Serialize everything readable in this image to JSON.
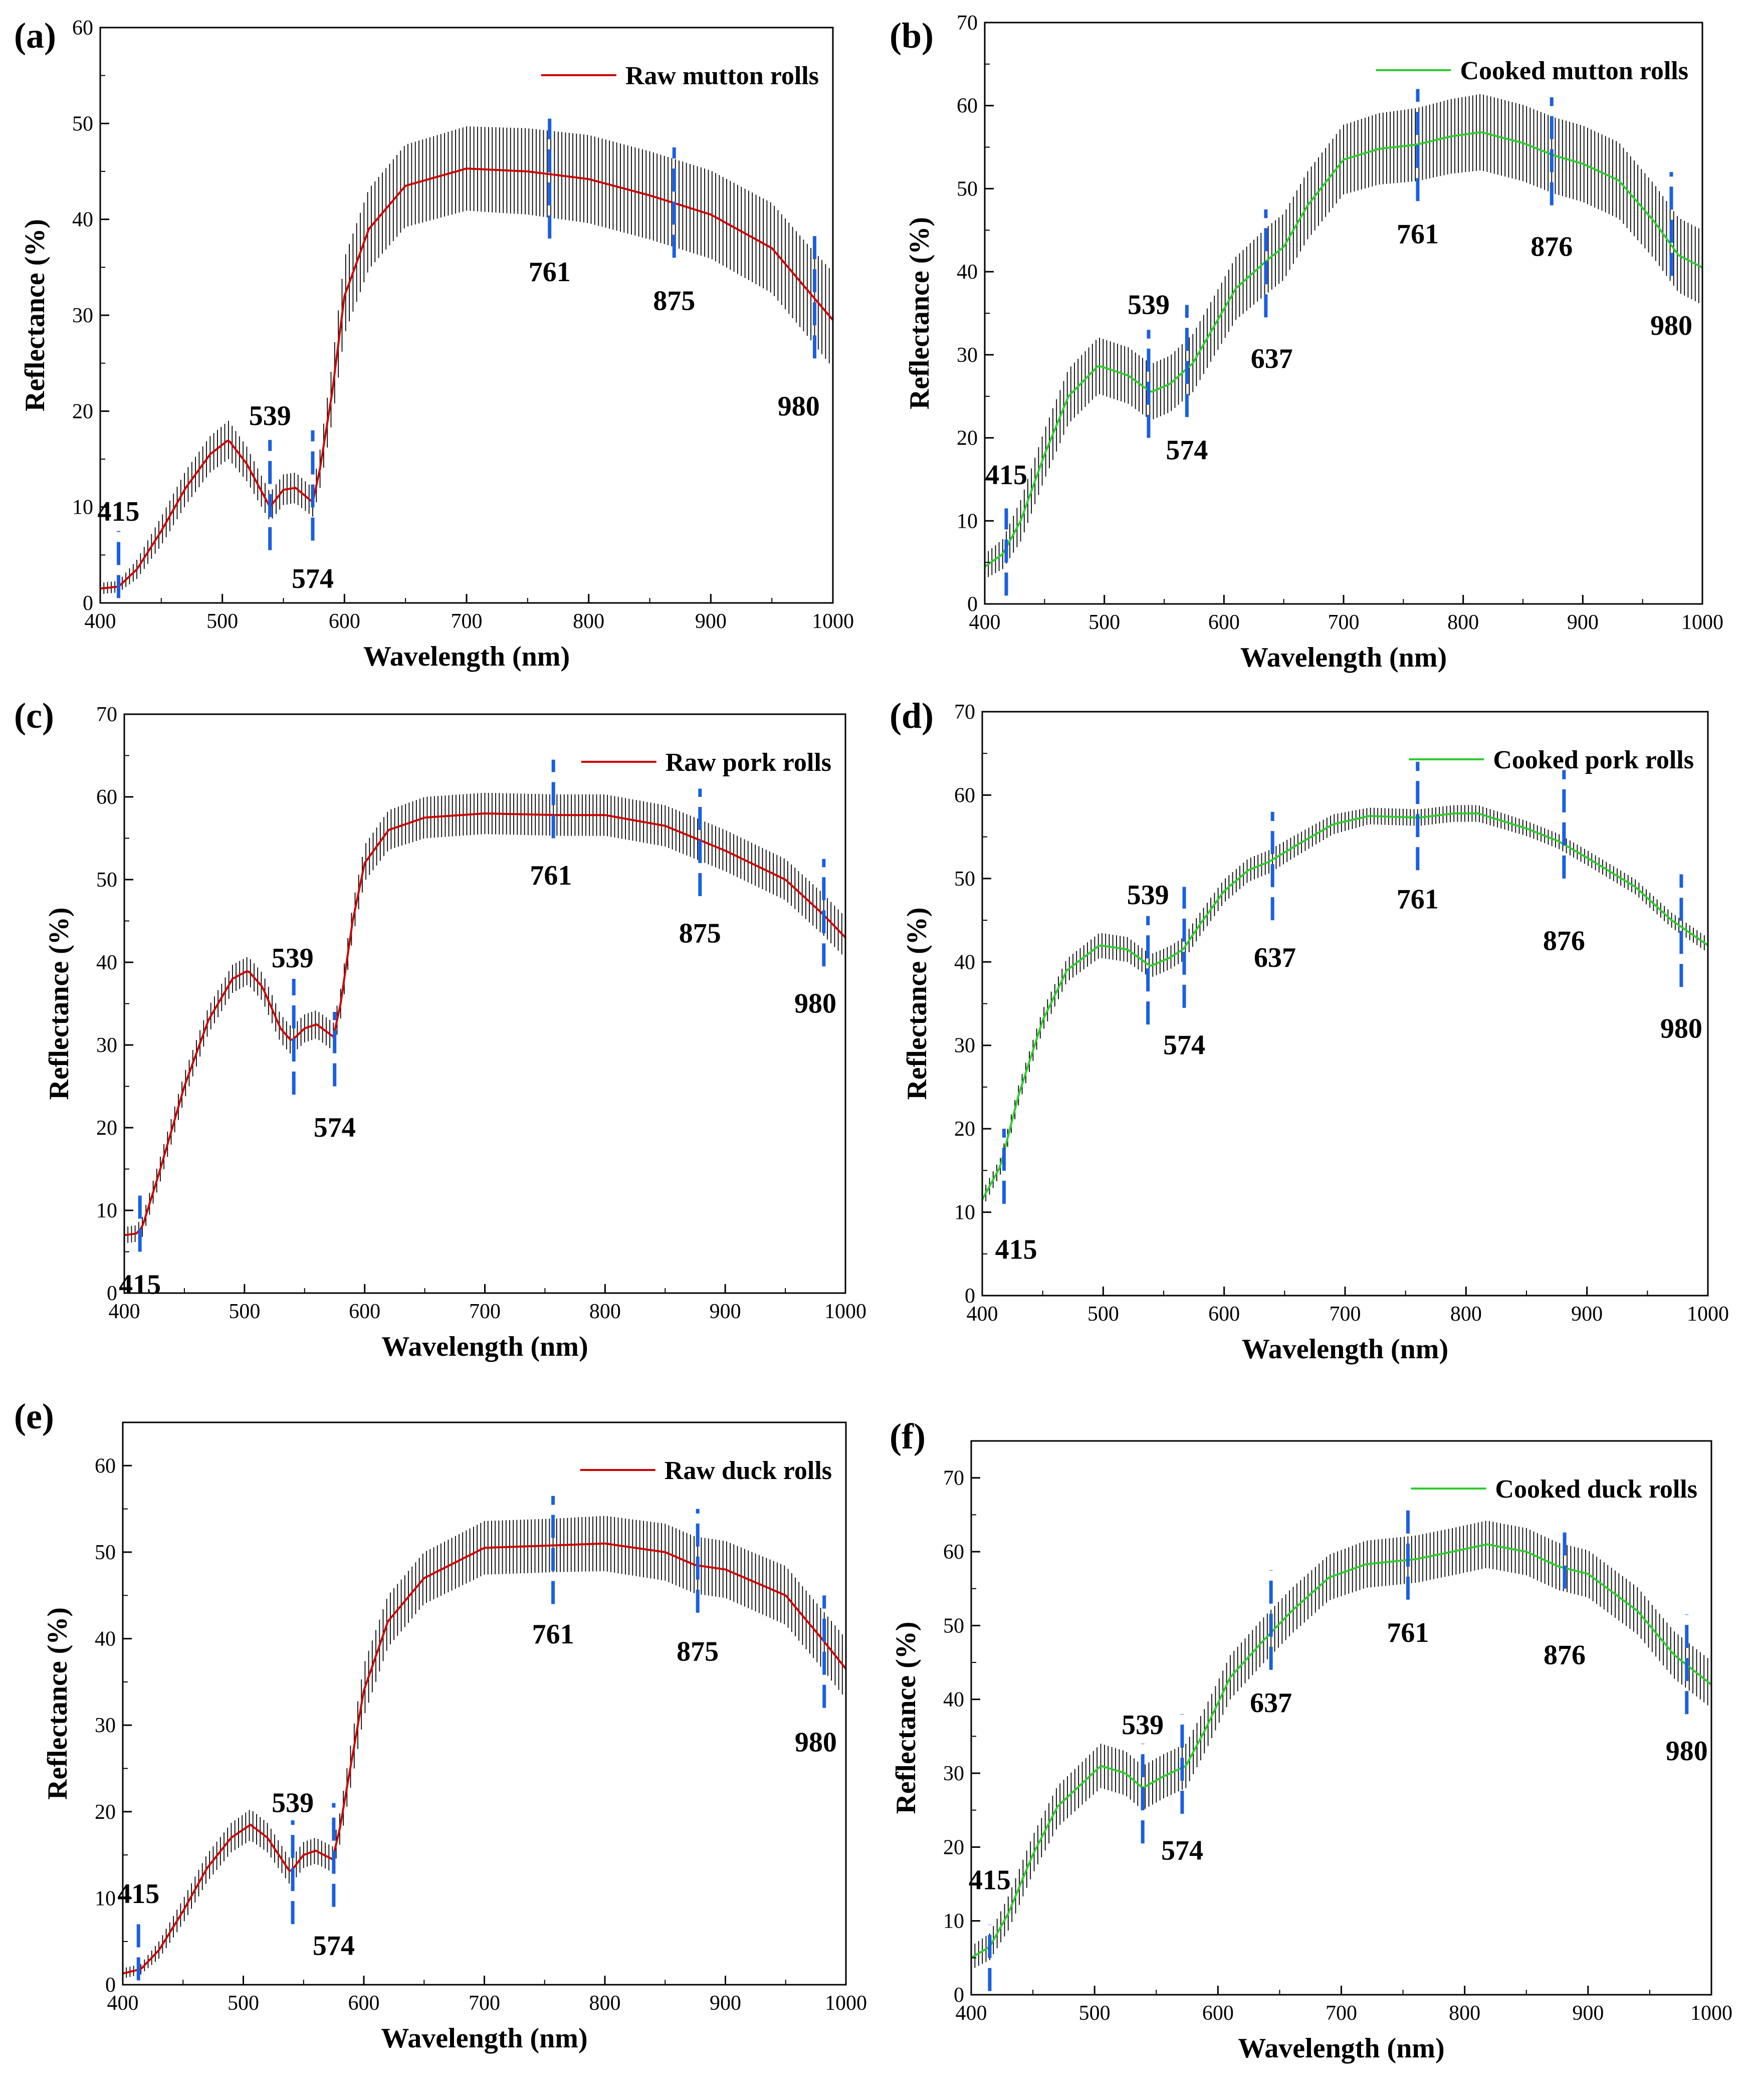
{
  "figure": {
    "background": "#ffffff"
  },
  "chart_data": [
    {
      "panel": "(a)",
      "type": "line",
      "title": "",
      "legend": "Raw mutton rolls",
      "legend_position": "top-right",
      "xlabel": "Wavelength (nm)",
      "ylabel": "Reflectance (%)",
      "xlim": [
        400,
        1000
      ],
      "ylim": [
        0,
        60
      ],
      "xticks": [
        400,
        500,
        600,
        700,
        800,
        900,
        1000
      ],
      "yticks": [
        0,
        10,
        20,
        30,
        40,
        50,
        60
      ],
      "line_color": "#cc0000",
      "error_color": "#000000",
      "marker_color": "#1a5fe0",
      "series": [
        {
          "name": "Raw mutton rolls",
          "x": [
            400,
            415,
            430,
            450,
            470,
            490,
            505,
            520,
            539,
            550,
            560,
            574,
            580,
            590,
            600,
            620,
            650,
            700,
            750,
            800,
            850,
            900,
            950,
            980,
            1000
          ],
          "values": [
            1.5,
            1.7,
            3.5,
            7.5,
            12,
            15.5,
            17,
            14.5,
            10,
            11.8,
            12,
            10.5,
            14,
            22,
            32,
            39,
            43.5,
            45.3,
            45,
            44.2,
            42.5,
            40.5,
            37,
            32.5,
            29.5
          ],
          "error": [
            0.6,
            0.6,
            1,
            1.5,
            1.8,
            1.9,
            2,
            1.8,
            1.5,
            1.6,
            1.6,
            1.5,
            2,
            3,
            4,
            4.2,
            4.3,
            4.4,
            4.5,
            4.6,
            4.6,
            4.6,
            4.7,
            4.8,
            5
          ]
        }
      ],
      "peaks": [
        {
          "label": "415",
          "x": 415,
          "y1": 0.5,
          "y2": 7.5,
          "lx": 415,
          "ly": 9.5
        },
        {
          "label": "539",
          "x": 539,
          "y1": 5.5,
          "y2": 17,
          "lx": 539,
          "ly": 19.5
        },
        {
          "label": "574",
          "x": 574,
          "y1": 6.5,
          "y2": 18,
          "lx": 574,
          "ly": 2.5
        },
        {
          "label": "761",
          "x": 768,
          "y1": 38,
          "y2": 50.5,
          "lx": 768,
          "ly": 34.5
        },
        {
          "label": "875",
          "x": 870,
          "y1": 36,
          "y2": 47.5,
          "lx": 870,
          "ly": 31.5
        },
        {
          "label": "980",
          "x": 985,
          "y1": 25.5,
          "y2": 39,
          "lx": 972,
          "ly": 20.5
        }
      ]
    },
    {
      "panel": "(b)",
      "type": "line",
      "title": "",
      "legend": "Cooked mutton rolls",
      "legend_position": "top-right",
      "xlabel": "Wavelength (nm)",
      "ylabel": "Reflectance (%)",
      "xlim": [
        400,
        1000
      ],
      "ylim": [
        0,
        70
      ],
      "xticks": [
        400,
        500,
        600,
        700,
        800,
        900,
        1000
      ],
      "yticks": [
        0,
        10,
        20,
        30,
        40,
        50,
        60,
        70
      ],
      "line_color": "#2ecc2e",
      "error_color": "#000000",
      "marker_color": "#1a5fe0",
      "series": [
        {
          "name": "Cooked mutton rolls",
          "x": [
            400,
            415,
            430,
            450,
            470,
            495,
            520,
            539,
            555,
            574,
            590,
            610,
            637,
            650,
            670,
            700,
            730,
            761,
            790,
            815,
            850,
            876,
            900,
            930,
            960,
            980,
            1000
          ],
          "values": [
            4.5,
            6,
            10,
            18,
            25,
            28.7,
            27.5,
            25.5,
            26.5,
            29,
            33,
            38,
            41.5,
            43,
            48,
            53.5,
            54.8,
            55.3,
            56.3,
            56.8,
            55.5,
            54,
            53,
            51,
            46,
            42,
            40.5
          ],
          "error": [
            1.5,
            1.8,
            2.5,
            3,
            3.3,
            3.4,
            3.4,
            3.4,
            3.4,
            3.5,
            3.6,
            3.8,
            4,
            4,
            4.1,
            4.2,
            4.3,
            4.4,
            4.5,
            4.6,
            4.6,
            4.6,
            4.6,
            4.6,
            4.5,
            4.5,
            4.5
          ]
        }
      ],
      "peaks": [
        {
          "label": "415",
          "x": 418,
          "y1": 1,
          "y2": 11.5,
          "lx": 418,
          "ly": 15.5
        },
        {
          "label": "539",
          "x": 537,
          "y1": 20,
          "y2": 33,
          "lx": 537,
          "ly": 36
        },
        {
          "label": "574",
          "x": 569,
          "y1": 22.5,
          "y2": 36,
          "lx": 569,
          "ly": 18.5
        },
        {
          "label": "637",
          "x": 635,
          "y1": 34.5,
          "y2": 47.5,
          "lx": 640,
          "ly": 29.5
        },
        {
          "label": "761",
          "x": 762,
          "y1": 48.5,
          "y2": 62,
          "lx": 762,
          "ly": 44.5
        },
        {
          "label": "876",
          "x": 874,
          "y1": 48,
          "y2": 61,
          "lx": 874,
          "ly": 43
        },
        {
          "label": "980",
          "x": 974,
          "y1": 39.5,
          "y2": 52,
          "lx": 974,
          "ly": 33.5
        }
      ]
    },
    {
      "panel": "(c)",
      "type": "line",
      "title": "",
      "legend": "Raw pork rolls",
      "legend_position": "top-right",
      "xlabel": "Wavelength (nm)",
      "ylabel": "Reflectance (%)",
      "xlim": [
        400,
        1000
      ],
      "ylim": [
        0,
        70
      ],
      "xticks": [
        400,
        500,
        600,
        700,
        800,
        900,
        1000
      ],
      "yticks": [
        0,
        10,
        20,
        30,
        40,
        50,
        60,
        70
      ],
      "line_color": "#cc0000",
      "error_color": "#000000",
      "marker_color": "#1a5fe0",
      "series": [
        {
          "name": "Raw pork rolls",
          "x": [
            400,
            410,
            415,
            430,
            450,
            470,
            490,
            503,
            515,
            530,
            539,
            550,
            560,
            574,
            580,
            590,
            600,
            620,
            650,
            700,
            761,
            800,
            850,
            875,
            900,
            950,
            980,
            1000
          ],
          "values": [
            7,
            7.2,
            8,
            15,
            25,
            33,
            38,
            39,
            37,
            32,
            30.5,
            32,
            32.5,
            31,
            35,
            45,
            52,
            56,
            57.5,
            58,
            57.8,
            57.8,
            56.5,
            55,
            53.5,
            50,
            46,
            43
          ],
          "error": [
            1,
            1,
            1.2,
            1.5,
            1.6,
            1.6,
            1.7,
            1.7,
            1.7,
            1.7,
            1.7,
            1.7,
            1.7,
            1.7,
            1.8,
            2,
            2.2,
            2.4,
            2.5,
            2.5,
            2.5,
            2.5,
            2.5,
            2.5,
            2.5,
            2.5,
            2.5,
            2.5
          ]
        }
      ],
      "peaks": [
        {
          "label": "415",
          "x": 413,
          "y1": 5,
          "y2": 13,
          "lx": 413,
          "ly": 1
        },
        {
          "label": "539",
          "x": 541,
          "y1": 24,
          "y2": 38,
          "lx": 540,
          "ly": 40.5
        },
        {
          "label": "574",
          "x": 575,
          "y1": 25,
          "y2": 34,
          "lx": 575,
          "ly": 20
        },
        {
          "label": "761",
          "x": 757,
          "y1": 55,
          "y2": 64.5,
          "lx": 755,
          "ly": 50.5
        },
        {
          "label": "875",
          "x": 879,
          "y1": 48,
          "y2": 61,
          "lx": 879,
          "ly": 43.5
        },
        {
          "label": "980",
          "x": 982,
          "y1": 39.5,
          "y2": 52.5,
          "lx": 975,
          "ly": 35
        }
      ]
    },
    {
      "panel": "(d)",
      "type": "line",
      "title": "",
      "legend": "Cooked pork rolls",
      "legend_position": "top-right",
      "xlabel": "Wavelength (nm)",
      "ylabel": "Reflectance (%)",
      "xlim": [
        400,
        1000
      ],
      "ylim": [
        0,
        70
      ],
      "xticks": [
        400,
        500,
        600,
        700,
        800,
        900,
        1000
      ],
      "yticks": [
        0,
        10,
        20,
        30,
        40,
        50,
        60,
        70
      ],
      "line_color": "#2ecc2e",
      "error_color": "#000000",
      "marker_color": "#1a5fe0",
      "series": [
        {
          "name": "Cooked pork rolls",
          "x": [
            400,
            415,
            430,
            450,
            470,
            497,
            520,
            539,
            555,
            566,
            580,
            600,
            620,
            637,
            660,
            690,
            720,
            761,
            790,
            810,
            850,
            876,
            900,
            940,
            970,
            1000
          ],
          "values": [
            11.5,
            15.5,
            24,
            33,
            39,
            42,
            41.5,
            39.5,
            40.5,
            41.5,
            44.5,
            48.5,
            51,
            52,
            54,
            56.5,
            57.5,
            57.3,
            57.8,
            57.8,
            56,
            54.5,
            52.5,
            49,
            45,
            42
          ],
          "error": [
            1,
            1,
            1.2,
            1.3,
            1.4,
            1.5,
            1.5,
            1.4,
            1.4,
            1.4,
            1.4,
            1.4,
            1.4,
            1.4,
            1.3,
            1.2,
            1,
            1,
            1,
            1,
            0.9,
            0.9,
            0.9,
            0.9,
            0.9,
            0.9
          ]
        }
      ],
      "peaks": [
        {
          "label": "415",
          "x": 418,
          "y1": 11,
          "y2": 20,
          "lx": 428,
          "ly": 5.5
        },
        {
          "label": "539",
          "x": 537,
          "y1": 32.5,
          "y2": 45.5,
          "lx": 537,
          "ly": 48
        },
        {
          "label": "574",
          "x": 567,
          "y1": 34.5,
          "y2": 49,
          "lx": 567,
          "ly": 30
        },
        {
          "label": "637",
          "x": 640,
          "y1": 45,
          "y2": 58,
          "lx": 642,
          "ly": 40.5
        },
        {
          "label": "761",
          "x": 760,
          "y1": 51,
          "y2": 64,
          "lx": 760,
          "ly": 47.5
        },
        {
          "label": "876",
          "x": 881,
          "y1": 50,
          "y2": 63,
          "lx": 881,
          "ly": 42.5
        },
        {
          "label": "980",
          "x": 978,
          "y1": 37,
          "y2": 50.5,
          "lx": 978,
          "ly": 32
        }
      ]
    },
    {
      "panel": "(e)",
      "type": "line",
      "title": "",
      "legend": "Raw duck rolls",
      "legend_position": "top-right",
      "xlabel": "Wavelength (nm)",
      "ylabel": "Reflectance (%)",
      "xlim": [
        400,
        1000
      ],
      "ylim": [
        0,
        65
      ],
      "xticks": [
        400,
        500,
        600,
        700,
        800,
        900,
        1000
      ],
      "yticks": [
        0,
        10,
        20,
        30,
        40,
        50,
        60
      ],
      "line_color": "#cc0000",
      "error_color": "#000000",
      "marker_color": "#1a5fe0",
      "series": [
        {
          "name": "Raw duck rolls",
          "x": [
            400,
            415,
            430,
            450,
            470,
            490,
            506,
            520,
            539,
            550,
            560,
            574,
            580,
            590,
            600,
            620,
            650,
            700,
            761,
            800,
            850,
            875,
            900,
            950,
            980,
            1000
          ],
          "values": [
            1.3,
            1.8,
            4,
            8.5,
            13.5,
            17,
            18.5,
            17,
            13,
            15,
            15.5,
            14.5,
            18,
            26,
            34,
            42,
            47,
            50.5,
            50.8,
            51,
            50,
            48.5,
            48,
            45,
            40,
            36.5
          ],
          "error": [
            0.6,
            0.6,
            1,
            1.4,
            1.6,
            1.7,
            1.8,
            1.7,
            1.5,
            1.5,
            1.5,
            1.5,
            1.8,
            2.5,
            3,
            3,
            3,
            3.1,
            3.1,
            3.2,
            3.3,
            3.3,
            3.3,
            3.4,
            3.4,
            3.5
          ]
        }
      ],
      "peaks": [
        {
          "label": "415",
          "x": 413,
          "y1": 0.5,
          "y2": 8,
          "lx": 413,
          "ly": 10.5
        },
        {
          "label": "539",
          "x": 541,
          "y1": 7,
          "y2": 19,
          "lx": 541,
          "ly": 21
        },
        {
          "label": "574",
          "x": 575,
          "y1": 9,
          "y2": 21,
          "lx": 575,
          "ly": 4.5
        },
        {
          "label": "761",
          "x": 757,
          "y1": 44,
          "y2": 56.5,
          "lx": 757,
          "ly": 40.5
        },
        {
          "label": "875",
          "x": 877,
          "y1": 43,
          "y2": 55,
          "lx": 877,
          "ly": 38.5
        },
        {
          "label": "980",
          "x": 982,
          "y1": 32,
          "y2": 45,
          "lx": 975,
          "ly": 28
        }
      ]
    },
    {
      "panel": "(f)",
      "type": "line",
      "title": "",
      "legend": "Cooked duck rolls",
      "legend_position": "top-right",
      "xlabel": "Wavelength (nm)",
      "ylabel": "Reflectance (%)",
      "xlim": [
        400,
        1000
      ],
      "ylim": [
        0,
        75
      ],
      "xticks": [
        400,
        500,
        600,
        700,
        800,
        900,
        1000
      ],
      "yticks": [
        0,
        10,
        20,
        30,
        40,
        50,
        60,
        70
      ],
      "line_color": "#2ecc2e",
      "error_color": "#000000",
      "marker_color": "#1a5fe0",
      "series": [
        {
          "name": "Cooked duck rolls",
          "x": [
            400,
            415,
            430,
            450,
            470,
            505,
            525,
            539,
            555,
            574,
            590,
            610,
            637,
            660,
            690,
            720,
            761,
            790,
            818,
            850,
            876,
            900,
            940,
            970,
            1000
          ],
          "values": [
            5,
            6.5,
            11,
            19,
            25.5,
            31,
            30,
            28,
            29.5,
            31,
            36,
            43,
            48,
            52,
            56.5,
            58.3,
            59,
            60,
            61,
            60,
            58,
            57,
            52,
            46,
            42
          ],
          "error": [
            1.6,
            1.8,
            2.3,
            2.6,
            2.8,
            3,
            3,
            3,
            3,
            3,
            3,
            3,
            3.1,
            3.1,
            3.1,
            3.2,
            3.2,
            3.2,
            3.2,
            3.2,
            3.2,
            3.2,
            3.2,
            3.2,
            3.2
          ]
        }
      ],
      "peaks": [
        {
          "label": "415",
          "x": 415,
          "y1": 0.5,
          "y2": 9.5,
          "lx": 415,
          "ly": 15.5
        },
        {
          "label": "539",
          "x": 539,
          "y1": 20.5,
          "y2": 34,
          "lx": 539,
          "ly": 36.5
        },
        {
          "label": "574",
          "x": 571,
          "y1": 24.5,
          "y2": 38,
          "lx": 571,
          "ly": 19.5
        },
        {
          "label": "637",
          "x": 643,
          "y1": 44,
          "y2": 57.5,
          "lx": 643,
          "ly": 39.5
        },
        {
          "label": "761",
          "x": 754,
          "y1": 53.5,
          "y2": 66,
          "lx": 754,
          "ly": 49
        },
        {
          "label": "876",
          "x": 881,
          "y1": 55,
          "y2": 63.5,
          "lx": 881,
          "ly": 46
        },
        {
          "label": "980",
          "x": 980,
          "y1": 38,
          "y2": 51.5,
          "lx": 980,
          "ly": 33
        }
      ]
    }
  ]
}
